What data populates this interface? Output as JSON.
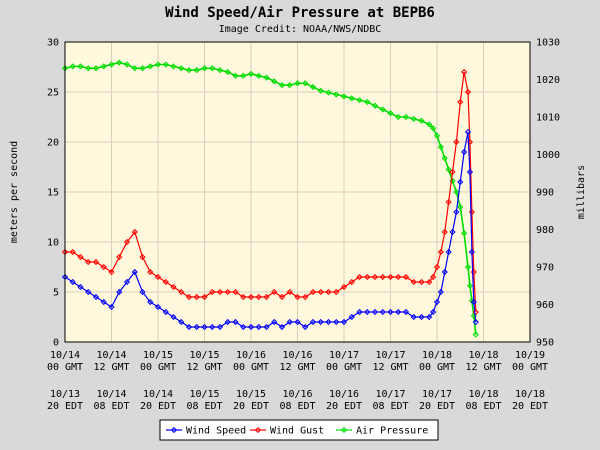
{
  "chart_data": {
    "type": "line",
    "title": "Wind Speed/Air Pressure at BEPB6",
    "subtitle": "Image Credit: NOAA/NWS/NDBC",
    "ylabel": "meters per second",
    "y2label": "millibars",
    "ylim": [
      0,
      30
    ],
    "y2lim": [
      950,
      1030
    ],
    "xlim": [
      0,
      120
    ],
    "x_unit": "hours since 10/14 00 GMT",
    "yticks": [
      "0",
      "5",
      "10",
      "15",
      "20",
      "25",
      "30"
    ],
    "y2ticks": [
      "950",
      "960",
      "970",
      "980",
      "990",
      "1000",
      "1010",
      "1020",
      "1030"
    ],
    "xticks_gmt": [
      [
        "10/14",
        "00 GMT"
      ],
      [
        "10/14",
        "12 GMT"
      ],
      [
        "10/15",
        "00 GMT"
      ],
      [
        "10/15",
        "12 GMT"
      ],
      [
        "10/16",
        "00 GMT"
      ],
      [
        "10/16",
        "12 GMT"
      ],
      [
        "10/17",
        "00 GMT"
      ],
      [
        "10/17",
        "12 GMT"
      ],
      [
        "10/18",
        "00 GMT"
      ],
      [
        "10/18",
        "12 GMT"
      ],
      [
        "10/19",
        "00 GMT"
      ]
    ],
    "xticks_edt": [
      [
        "10/13",
        "20 EDT"
      ],
      [
        "10/14",
        "08 EDT"
      ],
      [
        "10/14",
        "20 EDT"
      ],
      [
        "10/15",
        "08 EDT"
      ],
      [
        "10/15",
        "20 EDT"
      ],
      [
        "10/16",
        "08 EDT"
      ],
      [
        "10/16",
        "20 EDT"
      ],
      [
        "10/17",
        "08 EDT"
      ],
      [
        "10/17",
        "20 EDT"
      ],
      [
        "10/18",
        "08 EDT"
      ],
      [
        "10/18",
        "20 EDT"
      ]
    ],
    "grid": true,
    "legend_position": "bottom-center",
    "series": [
      {
        "name": "Wind Speed",
        "axis": "left",
        "color": "#0000ff",
        "marker": "diamond",
        "x": [
          0,
          2,
          4,
          6,
          8,
          10,
          12,
          14,
          16,
          18,
          20,
          22,
          24,
          26,
          28,
          30,
          32,
          34,
          36,
          38,
          40,
          42,
          44,
          46,
          48,
          50,
          52,
          54,
          56,
          58,
          60,
          62,
          64,
          66,
          68,
          70,
          72,
          74,
          76,
          78,
          80,
          82,
          84,
          86,
          88,
          90,
          92,
          94,
          95,
          96,
          97,
          98,
          99,
          100,
          101,
          102,
          103,
          104,
          104.5,
          105,
          105.5,
          106
        ],
        "y": [
          6.5,
          6,
          5.5,
          5,
          4.5,
          4,
          3.5,
          5,
          6,
          7,
          5,
          4,
          3.5,
          3,
          2.5,
          2,
          1.5,
          1.5,
          1.5,
          1.5,
          1.5,
          2,
          2,
          1.5,
          1.5,
          1.5,
          1.5,
          2,
          1.5,
          2,
          2,
          1.5,
          2,
          2,
          2,
          2,
          2,
          2.5,
          3,
          3,
          3,
          3,
          3,
          3,
          3,
          2.5,
          2.5,
          2.5,
          3,
          4,
          5,
          7,
          9,
          11,
          13,
          16,
          19,
          21,
          17,
          9,
          4,
          2
        ]
      },
      {
        "name": "Wind Gust",
        "axis": "left",
        "color": "#ff0000",
        "marker": "diamond",
        "x": [
          0,
          2,
          4,
          6,
          8,
          10,
          12,
          14,
          16,
          18,
          20,
          22,
          24,
          26,
          28,
          30,
          32,
          34,
          36,
          38,
          40,
          42,
          44,
          46,
          48,
          50,
          52,
          54,
          56,
          58,
          60,
          62,
          64,
          66,
          68,
          70,
          72,
          74,
          76,
          78,
          80,
          82,
          84,
          86,
          88,
          90,
          92,
          94,
          95,
          96,
          97,
          98,
          99,
          100,
          101,
          102,
          103,
          104,
          104.5,
          105,
          105.5,
          106
        ],
        "y": [
          9,
          9,
          8.5,
          8,
          8,
          7.5,
          7,
          8.5,
          10,
          11,
          8.5,
          7,
          6.5,
          6,
          5.5,
          5,
          4.5,
          4.5,
          4.5,
          5,
          5,
          5,
          5,
          4.5,
          4.5,
          4.5,
          4.5,
          5,
          4.5,
          5,
          4.5,
          4.5,
          5,
          5,
          5,
          5,
          5.5,
          6,
          6.5,
          6.5,
          6.5,
          6.5,
          6.5,
          6.5,
          6.5,
          6,
          6,
          6,
          6.5,
          7.5,
          9,
          11,
          14,
          17,
          20,
          24,
          27,
          25,
          20,
          13,
          7,
          3
        ]
      },
      {
        "name": "Air Pressure",
        "axis": "right",
        "color": "#00dd00",
        "marker": "diamond",
        "x": [
          0,
          2,
          4,
          6,
          8,
          10,
          12,
          14,
          16,
          18,
          20,
          22,
          24,
          26,
          28,
          30,
          32,
          34,
          36,
          38,
          40,
          42,
          44,
          46,
          48,
          50,
          52,
          54,
          56,
          58,
          60,
          62,
          64,
          66,
          68,
          70,
          72,
          74,
          76,
          78,
          80,
          82,
          84,
          86,
          88,
          90,
          92,
          94,
          95,
          96,
          97,
          98,
          99,
          100,
          101,
          102,
          103,
          104,
          104.5,
          105,
          105.5,
          106
        ],
        "y": [
          1023,
          1023.5,
          1023.5,
          1023,
          1023,
          1023.5,
          1024,
          1024.5,
          1024,
          1023,
          1023,
          1023.5,
          1024,
          1024,
          1023.5,
          1023,
          1022.5,
          1022.5,
          1023,
          1023,
          1022.5,
          1022,
          1021,
          1021,
          1021.5,
          1021,
          1020.5,
          1019.5,
          1018.5,
          1018.5,
          1019,
          1019,
          1018,
          1017,
          1016.5,
          1016,
          1015.5,
          1015,
          1014.5,
          1014,
          1013,
          1012,
          1011,
          1010,
          1010,
          1009.5,
          1009,
          1008,
          1007,
          1005,
          1002,
          999,
          996,
          993,
          990,
          986,
          979,
          970,
          965,
          961,
          957,
          952
        ]
      }
    ]
  }
}
